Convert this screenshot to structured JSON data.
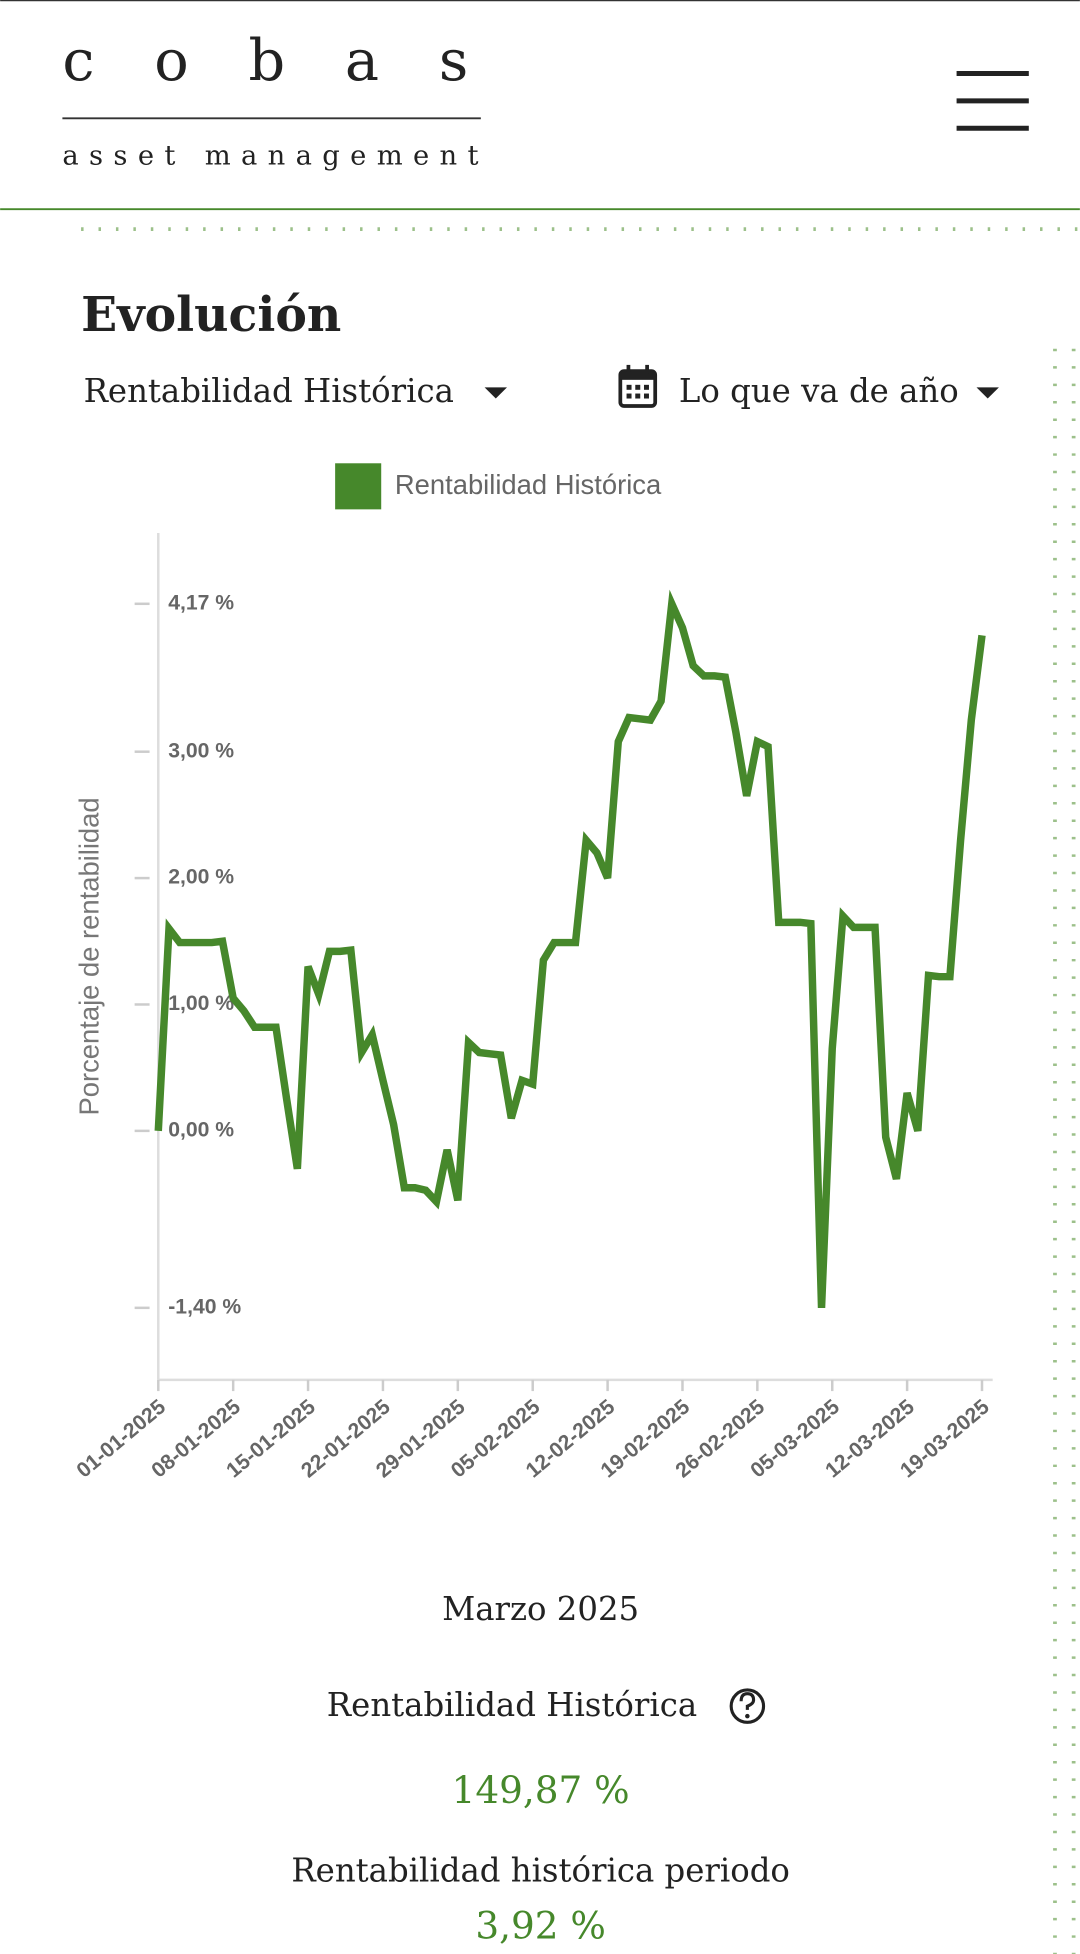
{
  "header": {
    "logo": "cobas",
    "tagline": "asset management"
  },
  "section_title": "Evolución",
  "filters": {
    "metric": "Rentabilidad Histórica",
    "period": "Lo que va de año"
  },
  "chart_data": {
    "type": "line",
    "y_label": "Porcentaje de rentabilidad",
    "x": [
      "01-01-2025",
      "02-01-2025",
      "03-01-2025",
      "04-01-2025",
      "05-01-2025",
      "06-01-2025",
      "07-01-2025",
      "08-01-2025",
      "09-01-2025",
      "10-01-2025",
      "11-01-2025",
      "12-01-2025",
      "13-01-2025",
      "14-01-2025",
      "15-01-2025",
      "16-01-2025",
      "17-01-2025",
      "18-01-2025",
      "19-01-2025",
      "20-01-2025",
      "21-01-2025",
      "22-01-2025",
      "23-01-2025",
      "24-01-2025",
      "25-01-2025",
      "26-01-2025",
      "27-01-2025",
      "28-01-2025",
      "29-01-2025",
      "30-01-2025",
      "31-01-2025",
      "01-02-2025",
      "02-02-2025",
      "03-02-2025",
      "04-02-2025",
      "05-02-2025",
      "06-02-2025",
      "07-02-2025",
      "08-02-2025",
      "09-02-2025",
      "10-02-2025",
      "11-02-2025",
      "12-02-2025",
      "13-02-2025",
      "14-02-2025",
      "15-02-2025",
      "16-02-2025",
      "17-02-2025",
      "18-02-2025",
      "19-02-2025",
      "20-02-2025",
      "21-02-2025",
      "22-02-2025",
      "23-02-2025",
      "24-02-2025",
      "25-02-2025",
      "26-02-2025",
      "27-02-2025",
      "28-02-2025",
      "01-03-2025",
      "02-03-2025",
      "03-03-2025",
      "04-03-2025",
      "05-03-2025",
      "06-03-2025",
      "07-03-2025",
      "08-03-2025",
      "09-03-2025",
      "10-03-2025",
      "11-03-2025",
      "12-03-2025",
      "13-03-2025",
      "14-03-2025",
      "15-03-2025",
      "16-03-2025",
      "17-03-2025",
      "18-03-2025",
      "19-03-2025"
    ],
    "series": [
      {
        "name": "Rentabilidad Histórica",
        "color": "#46882b",
        "values": [
          0.0,
          1.6,
          1.49,
          1.49,
          1.49,
          1.49,
          1.5,
          1.05,
          0.95,
          0.82,
          0.82,
          0.82,
          0.25,
          -0.3,
          1.3,
          1.08,
          1.42,
          1.42,
          1.43,
          0.62,
          0.76,
          0.4,
          0.05,
          -0.45,
          -0.45,
          -0.47,
          -0.56,
          -0.15,
          -0.55,
          0.7,
          0.62,
          0.61,
          0.6,
          0.1,
          0.4,
          0.37,
          1.35,
          1.49,
          1.49,
          1.49,
          2.3,
          2.2,
          2.0,
          3.08,
          3.27,
          3.26,
          3.25,
          3.4,
          4.17,
          3.98,
          3.68,
          3.6,
          3.6,
          3.59,
          3.15,
          2.65,
          3.08,
          3.04,
          1.65,
          1.65,
          1.65,
          1.64,
          -1.4,
          0.65,
          1.7,
          1.61,
          1.61,
          1.61,
          -0.05,
          -0.38,
          0.3,
          0.0,
          1.23,
          1.22,
          1.22,
          2.3,
          3.25,
          3.92
        ]
      }
    ],
    "xlim": [
      "01-01-2025",
      "20-03-2025"
    ],
    "xticks": [
      "01-01-2025",
      "08-01-2025",
      "15-01-2025",
      "22-01-2025",
      "29-01-2025",
      "05-02-2025",
      "12-02-2025",
      "19-02-2025",
      "26-02-2025",
      "05-03-2025",
      "12-03-2025",
      "19-03-2025"
    ],
    "ylim": [
      -1.97,
      4.73
    ],
    "yticks": [
      {
        "value": -1.4,
        "label": "-1,40 %"
      },
      {
        "value": 0,
        "label": "0,00 %"
      },
      {
        "value": 1,
        "label": "1,00 %"
      },
      {
        "value": 2,
        "label": "2,00 %"
      },
      {
        "value": 3,
        "label": "3,00 %"
      },
      {
        "value": 4.17,
        "label": "4,17 %"
      }
    ],
    "legend": "top"
  },
  "summary": {
    "month": "Marzo 2025",
    "total_label": "Rentabilidad Histórica",
    "total_value": "149,87 %",
    "period_label": "Rentabilidad histórica periodo",
    "period_value": "3,92 %"
  }
}
